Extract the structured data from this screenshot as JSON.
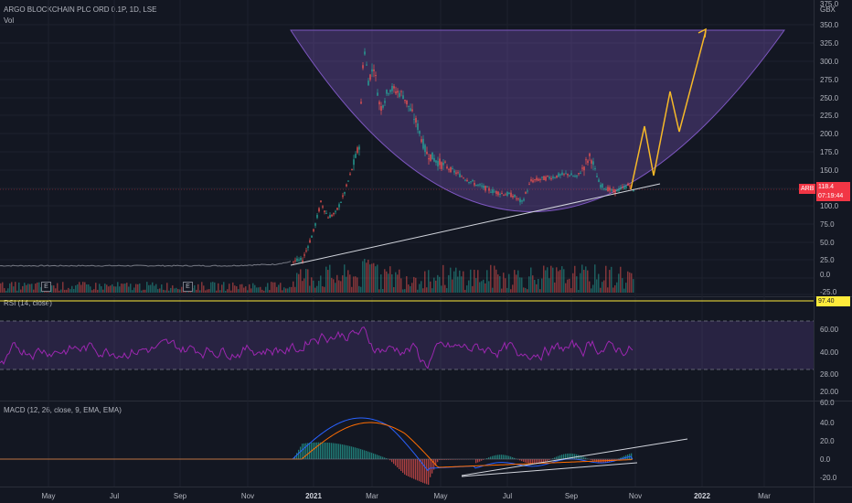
{
  "header": {
    "title": "ARGO BLOCKCHAIN PLC ORD 0.1P, 1D, LSE",
    "vol_label": "Vol"
  },
  "price_axis": {
    "currency": "GBX",
    "top_partial": "375.0",
    "ticks": [
      "350.0",
      "325.0",
      "300.0",
      "275.0",
      "250.0",
      "225.0",
      "200.0",
      "175.0",
      "150.0",
      "125.0",
      "100.0",
      "75.0",
      "50.0",
      "25.0",
      "0.0",
      "-25.0"
    ]
  },
  "price_tag": {
    "symbol": "ARB",
    "last": "118.4",
    "countdown": "07:19:44"
  },
  "rsi": {
    "label": "RSI (14, close)",
    "badge": "97.40",
    "ticks": [
      "60.00",
      "40.00",
      "28.00",
      "20.00"
    ]
  },
  "macd": {
    "label": "MACD (12, 26, close, 9, EMA, EMA)",
    "ticks": [
      "60.0",
      "40.0",
      "20.0",
      "0.0",
      "-20.0"
    ]
  },
  "time_axis": {
    "labels": [
      {
        "text": "May",
        "bold": false
      },
      {
        "text": "Jul",
        "bold": false
      },
      {
        "text": "Sep",
        "bold": false
      },
      {
        "text": "Nov",
        "bold": false
      },
      {
        "text": "2021",
        "bold": true
      },
      {
        "text": "Mar",
        "bold": false
      },
      {
        "text": "May",
        "bold": false
      },
      {
        "text": "Jul",
        "bold": false
      },
      {
        "text": "Sep",
        "bold": false
      },
      {
        "text": "Nov",
        "bold": false
      },
      {
        "text": "2022",
        "bold": true
      },
      {
        "text": "Mar",
        "bold": false
      }
    ]
  },
  "earnings_marker": "E",
  "colors": {
    "bg": "#131722",
    "up": "#26a69a",
    "down": "#ef5350",
    "cup": "#7e57c2",
    "projection": "#f7b928",
    "rsi": "#9c27b0",
    "macd": "#2962ff",
    "signal": "#ff6d00",
    "yellow": "#ffeb3b",
    "tag": "#f23645"
  }
}
